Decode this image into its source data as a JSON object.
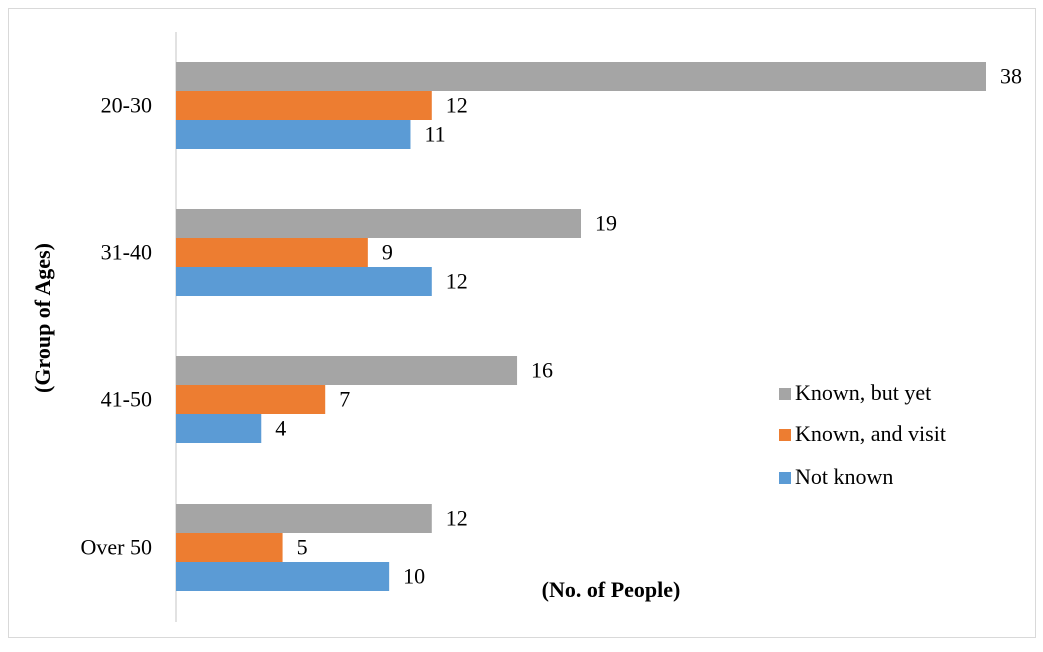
{
  "chart_data": {
    "type": "bar",
    "orientation": "horizontal",
    "categories": [
      "20-30",
      "31-40",
      "41-50",
      "Over 50"
    ],
    "series": [
      {
        "name": "Known, but yet",
        "color": "#a5a5a5",
        "values": [
          38,
          19,
          16,
          12
        ]
      },
      {
        "name": "Known, and visit",
        "color": "#ed7d31",
        "values": [
          12,
          9,
          7,
          5
        ]
      },
      {
        "name": "Not known",
        "color": "#5b9bd5",
        "values": [
          11,
          12,
          4,
          10
        ]
      }
    ],
    "xlabel": "(No. of People)",
    "ylabel": "(Group of Ages)",
    "xlim": [
      0,
      38
    ],
    "grid": false,
    "legend_position": "right"
  }
}
